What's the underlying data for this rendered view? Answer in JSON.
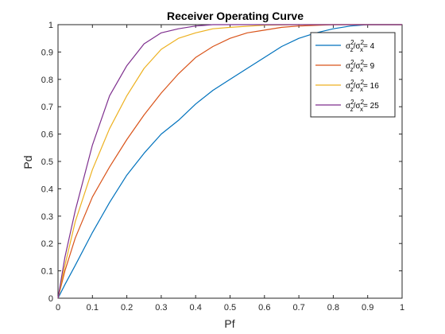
{
  "chart_data": {
    "type": "line",
    "title": "Receiver Operating Curve",
    "xlabel": "Pf",
    "ylabel": "Pd",
    "xlim": [
      0,
      1
    ],
    "ylim": [
      0,
      1
    ],
    "xticks": [
      "0",
      "0.1",
      "0.2",
      "0.3",
      "0.4",
      "0.5",
      "0.6",
      "0.7",
      "0.8",
      "0.9",
      "1"
    ],
    "yticks": [
      "0",
      "0.1",
      "0.2",
      "0.3",
      "0.4",
      "0.5",
      "0.6",
      "0.7",
      "0.8",
      "0.9",
      "1"
    ],
    "grid": false,
    "legend_position": "top-right",
    "series": [
      {
        "name": "σz²/σx²= 4",
        "legend_prefix": "σ",
        "legend_sup1": "2",
        "legend_sub1": "z",
        "legend_slash": "/σ",
        "legend_sup2": "2",
        "legend_sub2": "x",
        "legend_value": "= 4",
        "color": "#0072BD",
        "x": [
          0,
          0.02,
          0.05,
          0.1,
          0.15,
          0.2,
          0.25,
          0.3,
          0.35,
          0.4,
          0.45,
          0.5,
          0.55,
          0.6,
          0.65,
          0.7,
          0.75,
          0.8,
          0.85,
          0.9,
          0.95,
          1.0
        ],
        "y": [
          0,
          0.05,
          0.12,
          0.24,
          0.35,
          0.45,
          0.53,
          0.6,
          0.65,
          0.71,
          0.76,
          0.8,
          0.84,
          0.88,
          0.92,
          0.95,
          0.97,
          0.985,
          0.995,
          1.0,
          1.0,
          1.0
        ]
      },
      {
        "name": "σz²/σx²= 9",
        "legend_prefix": "σ",
        "legend_sup1": "2",
        "legend_sub1": "z",
        "legend_slash": "/σ",
        "legend_sup2": "2",
        "legend_sub2": "x",
        "legend_value": "= 9",
        "color": "#D95319",
        "x": [
          0,
          0.02,
          0.05,
          0.1,
          0.15,
          0.2,
          0.25,
          0.3,
          0.35,
          0.4,
          0.45,
          0.5,
          0.55,
          0.6,
          0.65,
          0.7,
          0.8,
          0.9,
          1.0
        ],
        "y": [
          0,
          0.1,
          0.22,
          0.37,
          0.48,
          0.58,
          0.67,
          0.75,
          0.82,
          0.88,
          0.92,
          0.95,
          0.97,
          0.98,
          0.99,
          0.995,
          1.0,
          1.0,
          1.0
        ]
      },
      {
        "name": "σz²/σx²= 16",
        "legend_prefix": "σ",
        "legend_sup1": "2",
        "legend_sub1": "z",
        "legend_slash": "/σ",
        "legend_sup2": "2",
        "legend_sub2": "x",
        "legend_value": "= 16",
        "color": "#EDB120",
        "x": [
          0,
          0.02,
          0.05,
          0.1,
          0.15,
          0.2,
          0.25,
          0.3,
          0.35,
          0.4,
          0.45,
          0.5,
          0.6,
          0.7,
          0.8,
          1.0
        ],
        "y": [
          0,
          0.12,
          0.28,
          0.47,
          0.62,
          0.74,
          0.84,
          0.91,
          0.95,
          0.97,
          0.985,
          0.99,
          0.998,
          1.0,
          1.0,
          1.0
        ]
      },
      {
        "name": "σz²/σx²= 25",
        "legend_prefix": "σ",
        "legend_sup1": "2",
        "legend_sub1": "z",
        "legend_slash": "/σ",
        "legend_sup2": "2",
        "legend_sub2": "x",
        "legend_value": "= 25",
        "color": "#7E2F8E",
        "x": [
          0,
          0.02,
          0.05,
          0.1,
          0.15,
          0.2,
          0.25,
          0.3,
          0.35,
          0.4,
          0.45,
          0.5,
          0.6,
          0.7,
          1.0
        ],
        "y": [
          0,
          0.15,
          0.32,
          0.56,
          0.74,
          0.85,
          0.93,
          0.97,
          0.985,
          0.995,
          1.0,
          1.0,
          1.0,
          1.0,
          1.0
        ]
      }
    ]
  }
}
